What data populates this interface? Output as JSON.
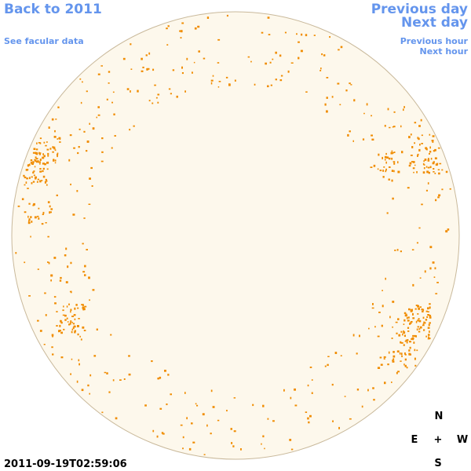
{
  "navigation": {
    "back": "Back to 2011",
    "facular_data": "See facular data",
    "previous_day": "Previous day",
    "next_day": "Next day",
    "previous_hour": "Previous hour",
    "next_hour": "Next hour"
  },
  "timestamp": "2011-09-19T02:59:06",
  "compass": {
    "north": "N",
    "east": "E",
    "center": "+",
    "west": "W",
    "south": "S"
  }
}
